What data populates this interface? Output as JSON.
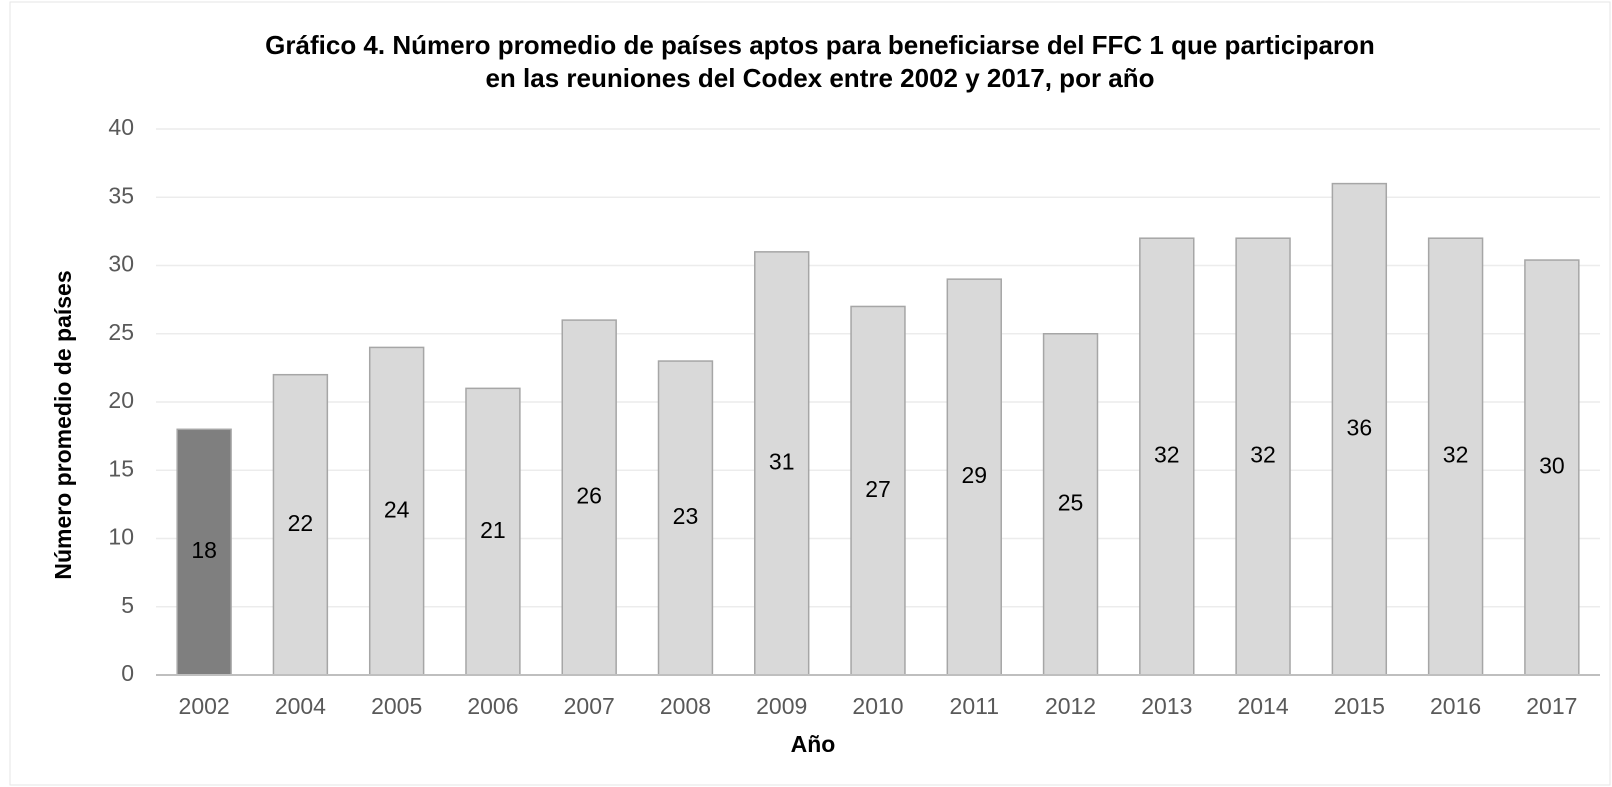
{
  "chart_data": {
    "type": "bar",
    "title": [
      "Gráfico 4. Número promedio de países aptos para beneficiarse del FFC 1 que participaron",
      "en las reuniones del Codex entre 2002 y 2017, por año"
    ],
    "x_label": "Año",
    "y_label": "Número promedio de países",
    "categories": [
      "2002",
      "2004",
      "2005",
      "2006",
      "2007",
      "2008",
      "2009",
      "2010",
      "2011",
      "2012",
      "2013",
      "2014",
      "2015",
      "2016",
      "2017"
    ],
    "values": [
      18,
      22,
      24,
      21,
      26,
      23,
      31,
      27,
      29,
      25,
      32,
      32,
      36,
      32,
      30.4
    ],
    "value_labels": [
      "18",
      "22",
      "24",
      "21",
      "26",
      "23",
      "31",
      "27",
      "29",
      "25",
      "32",
      "32",
      "36",
      "32",
      "30"
    ],
    "colors": [
      "#7f7f7f",
      "#d9d9d9",
      "#d9d9d9",
      "#d9d9d9",
      "#d9d9d9",
      "#d9d9d9",
      "#d9d9d9",
      "#d9d9d9",
      "#d9d9d9",
      "#d9d9d9",
      "#d9d9d9",
      "#d9d9d9",
      "#d9d9d9",
      "#d9d9d9",
      "#d9d9d9"
    ],
    "ylim": [
      0,
      40
    ],
    "yticks": [
      0,
      5,
      10,
      15,
      20,
      25,
      30,
      35,
      40
    ],
    "grid": true
  }
}
